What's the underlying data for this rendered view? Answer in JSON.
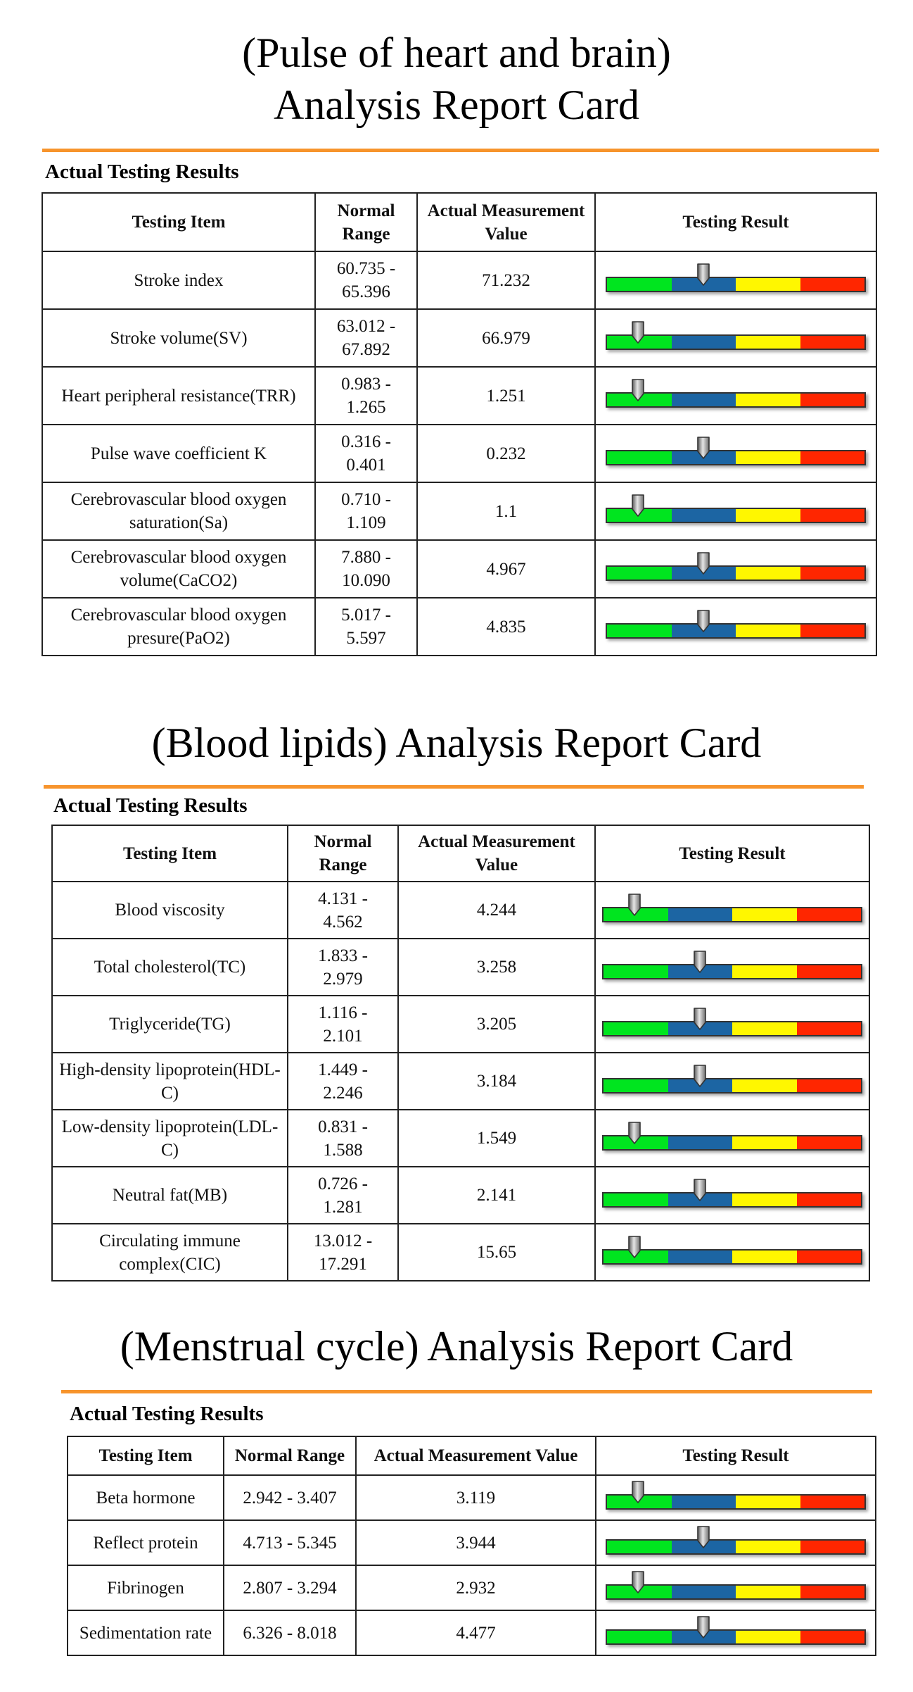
{
  "colors": {
    "accent_rule": "#f7942c",
    "gauge_segments": [
      "#00e51f",
      "#1c65a3",
      "#fff700",
      "#ff2600"
    ]
  },
  "sections": [
    {
      "title_lines": [
        "(Pulse of heart and brain)",
        "Analysis Report Card"
      ],
      "caption": "Actual Testing Results",
      "headers": [
        "Testing Item",
        "Normal Range",
        "Actual Measurement Value",
        "Testing Result"
      ],
      "rows": [
        {
          "item": "Stroke index",
          "range": "60.735 - 65.396",
          "value": "71.232",
          "gauge_position": 0.375
        },
        {
          "item": "Stroke volume(SV)",
          "range": "63.012 - 67.892",
          "value": "66.979",
          "gauge_position": 0.125
        },
        {
          "item": "Heart peripheral resistance(TRR)",
          "range": "0.983 - 1.265",
          "value": "1.251",
          "gauge_position": 0.125
        },
        {
          "item": "Pulse wave coefficient K",
          "range": "0.316 - 0.401",
          "value": "0.232",
          "gauge_position": 0.375
        },
        {
          "item": "Cerebrovascular blood oxygen saturation(Sa)",
          "range": "0.710 - 1.109",
          "value": "1.1",
          "gauge_position": 0.125
        },
        {
          "item": "Cerebrovascular blood oxygen volume(CaCO2)",
          "range": "7.880 - 10.090",
          "value": "4.967",
          "gauge_position": 0.375
        },
        {
          "item": "Cerebrovascular blood oxygen presure(PaO2)",
          "range": "5.017 - 5.597",
          "value": "4.835",
          "gauge_position": 0.375
        }
      ]
    },
    {
      "title_lines": [
        "(Blood lipids) Analysis Report Card"
      ],
      "caption": "Actual Testing Results",
      "headers": [
        "Testing Item",
        "Normal Range",
        "Actual Measurement Value",
        "Testing Result"
      ],
      "rows": [
        {
          "item": "Blood viscosity",
          "range": "4.131 - 4.562",
          "value": "4.244",
          "gauge_position": 0.125
        },
        {
          "item": "Total cholesterol(TC)",
          "range": "1.833 - 2.979",
          "value": "3.258",
          "gauge_position": 0.375
        },
        {
          "item": "Triglyceride(TG)",
          "range": "1.116 - 2.101",
          "value": "3.205",
          "gauge_position": 0.375
        },
        {
          "item": "High-density lipoprotein(HDL-C)",
          "range": "1.449 - 2.246",
          "value": "3.184",
          "gauge_position": 0.375
        },
        {
          "item": "Low-density lipoprotein(LDL-C)",
          "range": "0.831 - 1.588",
          "value": "1.549",
          "gauge_position": 0.125
        },
        {
          "item": "Neutral fat(MB)",
          "range": "0.726 - 1.281",
          "value": "2.141",
          "gauge_position": 0.375
        },
        {
          "item": "Circulating immune complex(CIC)",
          "range": "13.012 - 17.291",
          "value": "15.65",
          "gauge_position": 0.125
        }
      ]
    },
    {
      "title_lines": [
        "(Menstrual cycle) Analysis Report Card"
      ],
      "caption": "Actual Testing Results",
      "headers": [
        "Testing Item",
        "Normal Range",
        "Actual Measurement Value",
        "Testing Result"
      ],
      "rows": [
        {
          "item": "Beta hormone",
          "range": "2.942 - 3.407",
          "value": "3.119",
          "gauge_position": 0.125
        },
        {
          "item": "Reflect protein",
          "range": "4.713 - 5.345",
          "value": "3.944",
          "gauge_position": 0.375
        },
        {
          "item": "Fibrinogen",
          "range": "2.807 - 3.294",
          "value": "2.932",
          "gauge_position": 0.125
        },
        {
          "item": "Sedimentation rate",
          "range": "6.326 - 8.018",
          "value": "4.477",
          "gauge_position": 0.375
        }
      ]
    }
  ]
}
